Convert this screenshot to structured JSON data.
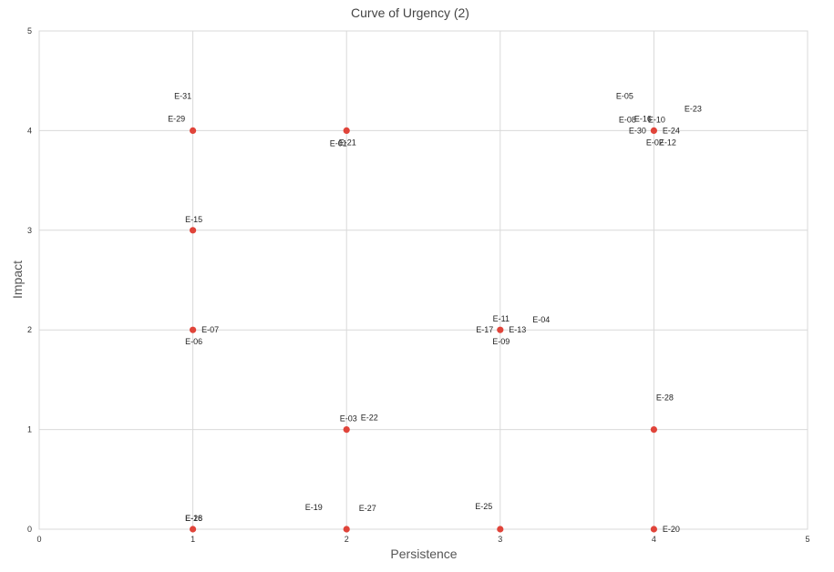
{
  "chart_data": {
    "type": "scatter",
    "title": "Curve of Urgency (2)",
    "xlabel": "Persistence",
    "ylabel": "Impact",
    "xlim": [
      0,
      5
    ],
    "ylim": [
      0,
      5
    ],
    "xticks": [
      "0",
      "1",
      "2",
      "3",
      "4",
      "5"
    ],
    "yticks": [
      "0",
      "1",
      "2",
      "3",
      "4",
      "5"
    ],
    "grid": true,
    "marker_color": "#e0443a",
    "points": [
      {
        "x": 1,
        "y": 4
      },
      {
        "x": 2,
        "y": 4
      },
      {
        "x": 4,
        "y": 4
      },
      {
        "x": 1,
        "y": 3
      },
      {
        "x": 1,
        "y": 2
      },
      {
        "x": 3,
        "y": 2
      },
      {
        "x": 2,
        "y": 1
      },
      {
        "x": 4,
        "y": 1
      },
      {
        "x": 1,
        "y": 0
      },
      {
        "x": 2,
        "y": 0
      },
      {
        "x": 3,
        "y": 0
      },
      {
        "x": 4,
        "y": 0
      }
    ],
    "labels": [
      {
        "text": "E-31",
        "x": 1,
        "y": 4
      },
      {
        "text": "E-29",
        "x": 1,
        "y": 4
      },
      {
        "text": "E-01",
        "x": 2,
        "y": 4
      },
      {
        "text": "E-21",
        "x": 2,
        "y": 4
      },
      {
        "text": "E-05",
        "x": 4,
        "y": 4
      },
      {
        "text": "E-23",
        "x": 4,
        "y": 4
      },
      {
        "text": "E-08",
        "x": 4,
        "y": 4
      },
      {
        "text": "E-16",
        "x": 4,
        "y": 4
      },
      {
        "text": "E-10",
        "x": 4,
        "y": 4
      },
      {
        "text": "E-30",
        "x": 4,
        "y": 4
      },
      {
        "text": "E-24",
        "x": 4,
        "y": 4
      },
      {
        "text": "E-02",
        "x": 4,
        "y": 4
      },
      {
        "text": "E-12",
        "x": 4,
        "y": 4
      },
      {
        "text": "E-15",
        "x": 1,
        "y": 3
      },
      {
        "text": "E-07",
        "x": 1,
        "y": 2
      },
      {
        "text": "E-06",
        "x": 1,
        "y": 2
      },
      {
        "text": "E-11",
        "x": 3,
        "y": 2
      },
      {
        "text": "E-04",
        "x": 3,
        "y": 2
      },
      {
        "text": "E-17",
        "x": 3,
        "y": 2
      },
      {
        "text": "E-13",
        "x": 3,
        "y": 2
      },
      {
        "text": "E-09",
        "x": 3,
        "y": 2
      },
      {
        "text": "E-28",
        "x": 4,
        "y": 1
      },
      {
        "text": "E-03",
        "x": 2,
        "y": 1
      },
      {
        "text": "E-22",
        "x": 2,
        "y": 1
      },
      {
        "text": "E-26",
        "x": 1,
        "y": 0
      },
      {
        "text": "E-18",
        "x": 1,
        "y": 0
      },
      {
        "text": "E-19",
        "x": 2,
        "y": 0
      },
      {
        "text": "E-27",
        "x": 2,
        "y": 0
      },
      {
        "text": "E-25",
        "x": 3,
        "y": 0
      },
      {
        "text": "E-20",
        "x": 4,
        "y": 0
      }
    ]
  }
}
